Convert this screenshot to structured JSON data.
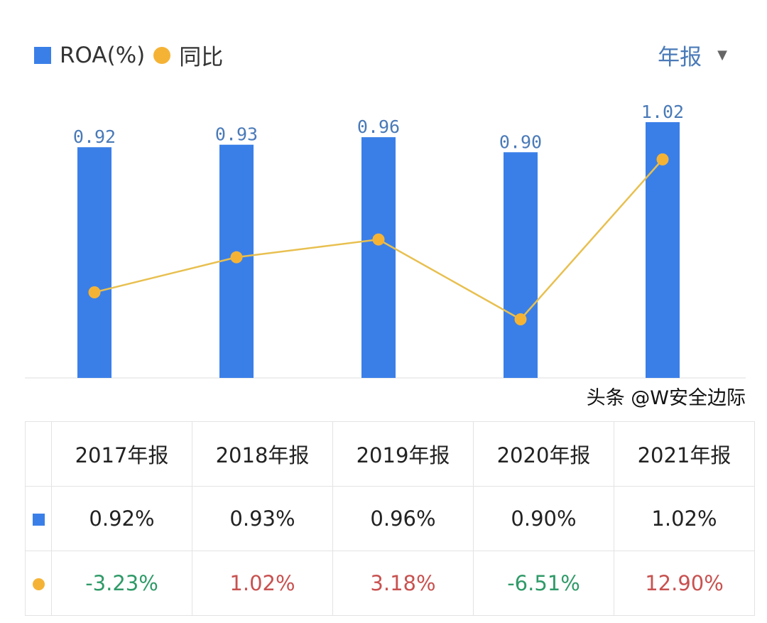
{
  "legend": {
    "series1": "ROA(%)",
    "series2": "同比"
  },
  "period_selector": {
    "label": "年报"
  },
  "chart_data": {
    "type": "bar+line",
    "categories": [
      "2017年报",
      "2018年报",
      "2019年报",
      "2020年报",
      "2021年报"
    ],
    "series": [
      {
        "name": "ROA(%)",
        "type": "bar",
        "values": [
          0.92,
          0.93,
          0.96,
          0.9,
          1.02
        ],
        "labels": [
          "0.92",
          "0.93",
          "0.96",
          "0.90",
          "1.02"
        ],
        "color": "#3a7fe8"
      },
      {
        "name": "同比",
        "type": "line",
        "values": [
          -3.23,
          1.02,
          3.18,
          -6.51,
          12.9
        ],
        "color": "#f5b335"
      }
    ]
  },
  "table": {
    "headers": [
      "2017年报",
      "2018年报",
      "2019年报",
      "2020年报",
      "2021年报"
    ],
    "roa": [
      "0.92%",
      "0.93%",
      "0.96%",
      "0.90%",
      "1.02%"
    ],
    "yoy": [
      "-3.23%",
      "1.02%",
      "3.18%",
      "-6.51%",
      "12.90%"
    ]
  },
  "watermark": "头条 @W安全边际"
}
